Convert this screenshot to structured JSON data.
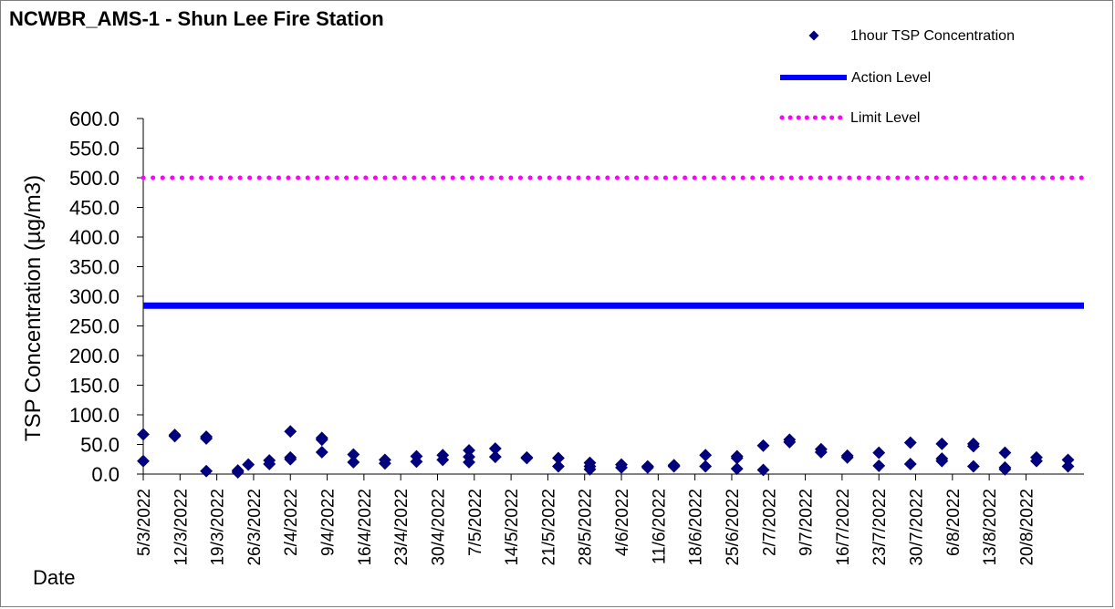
{
  "chart_data": {
    "type": "scatter",
    "title": "NCWBR_AMS-1 - Shun Lee Fire Station",
    "xlabel": "Date",
    "ylabel": "TSP Concentration (µg/m3)",
    "ylim": [
      0,
      600
    ],
    "y_ticks": [
      "0.0",
      "50.0",
      "100.0",
      "150.0",
      "200.0",
      "250.0",
      "300.0",
      "350.0",
      "400.0",
      "450.0",
      "500.0",
      "550.0",
      "600.0"
    ],
    "x_range": [
      "2022-03-05",
      "2022-08-26"
    ],
    "x_tick_labels": [
      {
        "date": "2022-03-05",
        "label": "5/3/2022"
      },
      {
        "date": "2022-03-12",
        "label": "12/3/2022"
      },
      {
        "date": "2022-03-19",
        "label": "19/3/2022"
      },
      {
        "date": "2022-03-26",
        "label": "26/3/2022"
      },
      {
        "date": "2022-04-02",
        "label": "2/4/2022"
      },
      {
        "date": "2022-04-09",
        "label": "9/4/2022"
      },
      {
        "date": "2022-04-16",
        "label": "16/4/2022"
      },
      {
        "date": "2022-04-23",
        "label": "23/4/2022"
      },
      {
        "date": "2022-04-30",
        "label": "30/4/2022"
      },
      {
        "date": "2022-05-07",
        "label": "7/5/2022"
      },
      {
        "date": "2022-05-14",
        "label": "14/5/2022"
      },
      {
        "date": "2022-05-21",
        "label": "21/5/2022"
      },
      {
        "date": "2022-05-28",
        "label": "28/5/2022"
      },
      {
        "date": "2022-06-04",
        "label": "4/6/2022"
      },
      {
        "date": "2022-06-11",
        "label": "11/6/2022"
      },
      {
        "date": "2022-06-18",
        "label": "18/6/2022"
      },
      {
        "date": "2022-06-25",
        "label": "25/6/2022"
      },
      {
        "date": "2022-07-02",
        "label": "2/7/2022"
      },
      {
        "date": "2022-07-09",
        "label": "9/7/2022"
      },
      {
        "date": "2022-07-16",
        "label": "16/7/2022"
      },
      {
        "date": "2022-07-23",
        "label": "23/7/2022"
      },
      {
        "date": "2022-07-30",
        "label": "30/7/2022"
      },
      {
        "date": "2022-08-06",
        "label": "6/8/2022"
      },
      {
        "date": "2022-08-13",
        "label": "13/8/2022"
      },
      {
        "date": "2022-08-20",
        "label": "20/8/2022"
      }
    ],
    "legend": {
      "placement": "top-right",
      "entries": [
        {
          "name": "1hour TSP Concentration",
          "marker": "diamond",
          "color": "#000080"
        },
        {
          "name": "Action Level",
          "line": "solid",
          "color": "#0000ff"
        },
        {
          "name": "Limit Level",
          "line": "dotted",
          "color": "#ff00ff"
        }
      ]
    },
    "action_level": 284.3,
    "limit_level": 500,
    "grid": false,
    "series": [
      {
        "name": "1hour TSP Concentration",
        "color": "#000080",
        "points": [
          {
            "x": "2022-03-05",
            "y": 67
          },
          {
            "x": "2022-03-05",
            "y": 22
          },
          {
            "x": "2022-03-11",
            "y": 66
          },
          {
            "x": "2022-03-11",
            "y": 64
          },
          {
            "x": "2022-03-17",
            "y": 63
          },
          {
            "x": "2022-03-17",
            "y": 60
          },
          {
            "x": "2022-03-17",
            "y": 5
          },
          {
            "x": "2022-03-23",
            "y": 6
          },
          {
            "x": "2022-03-23",
            "y": 3
          },
          {
            "x": "2022-03-25",
            "y": 16
          },
          {
            "x": "2022-03-29",
            "y": 23
          },
          {
            "x": "2022-03-29",
            "y": 17
          },
          {
            "x": "2022-04-02",
            "y": 72
          },
          {
            "x": "2022-04-02",
            "y": 28
          },
          {
            "x": "2022-04-02",
            "y": 25
          },
          {
            "x": "2022-04-08",
            "y": 61
          },
          {
            "x": "2022-04-08",
            "y": 58
          },
          {
            "x": "2022-04-08",
            "y": 37
          },
          {
            "x": "2022-04-14",
            "y": 33
          },
          {
            "x": "2022-04-14",
            "y": 20
          },
          {
            "x": "2022-04-20",
            "y": 24
          },
          {
            "x": "2022-04-20",
            "y": 18
          },
          {
            "x": "2022-04-26",
            "y": 30
          },
          {
            "x": "2022-04-26",
            "y": 21
          },
          {
            "x": "2022-05-01",
            "y": 32
          },
          {
            "x": "2022-05-01",
            "y": 24
          },
          {
            "x": "2022-05-06",
            "y": 40
          },
          {
            "x": "2022-05-06",
            "y": 29
          },
          {
            "x": "2022-05-06",
            "y": 20
          },
          {
            "x": "2022-05-11",
            "y": 43
          },
          {
            "x": "2022-05-11",
            "y": 29
          },
          {
            "x": "2022-05-17",
            "y": 28
          },
          {
            "x": "2022-05-17",
            "y": 27
          },
          {
            "x": "2022-05-23",
            "y": 27
          },
          {
            "x": "2022-05-23",
            "y": 13
          },
          {
            "x": "2022-05-29",
            "y": 19
          },
          {
            "x": "2022-05-29",
            "y": 13
          },
          {
            "x": "2022-05-29",
            "y": 8
          },
          {
            "x": "2022-06-04",
            "y": 16
          },
          {
            "x": "2022-06-04",
            "y": 11
          },
          {
            "x": "2022-06-09",
            "y": 13
          },
          {
            "x": "2022-06-09",
            "y": 11
          },
          {
            "x": "2022-06-14",
            "y": 15
          },
          {
            "x": "2022-06-14",
            "y": 13
          },
          {
            "x": "2022-06-20",
            "y": 32
          },
          {
            "x": "2022-06-20",
            "y": 13
          },
          {
            "x": "2022-06-26",
            "y": 30
          },
          {
            "x": "2022-06-26",
            "y": 27
          },
          {
            "x": "2022-06-26",
            "y": 9
          },
          {
            "x": "2022-07-01",
            "y": 48
          },
          {
            "x": "2022-07-01",
            "y": 7
          },
          {
            "x": "2022-07-06",
            "y": 58
          },
          {
            "x": "2022-07-06",
            "y": 54
          },
          {
            "x": "2022-07-12",
            "y": 42
          },
          {
            "x": "2022-07-12",
            "y": 37
          },
          {
            "x": "2022-07-17",
            "y": 31
          },
          {
            "x": "2022-07-17",
            "y": 28
          },
          {
            "x": "2022-07-23",
            "y": 36
          },
          {
            "x": "2022-07-23",
            "y": 14
          },
          {
            "x": "2022-07-29",
            "y": 53
          },
          {
            "x": "2022-07-29",
            "y": 17
          },
          {
            "x": "2022-08-04",
            "y": 51
          },
          {
            "x": "2022-08-04",
            "y": 26
          },
          {
            "x": "2022-08-04",
            "y": 22
          },
          {
            "x": "2022-08-10",
            "y": 51
          },
          {
            "x": "2022-08-10",
            "y": 47
          },
          {
            "x": "2022-08-10",
            "y": 13
          },
          {
            "x": "2022-08-16",
            "y": 36
          },
          {
            "x": "2022-08-16",
            "y": 11
          },
          {
            "x": "2022-08-16",
            "y": 8
          },
          {
            "x": "2022-08-22",
            "y": 28
          },
          {
            "x": "2022-08-22",
            "y": 22
          },
          {
            "x": "2022-08-28",
            "y": 24
          },
          {
            "x": "2022-08-28",
            "y": 13
          }
        ]
      },
      {
        "name": "Action Level",
        "color": "#0000ff",
        "values": [
          284.3
        ]
      },
      {
        "name": "Limit Level",
        "color": "#ff00ff",
        "values": [
          500
        ]
      }
    ]
  }
}
